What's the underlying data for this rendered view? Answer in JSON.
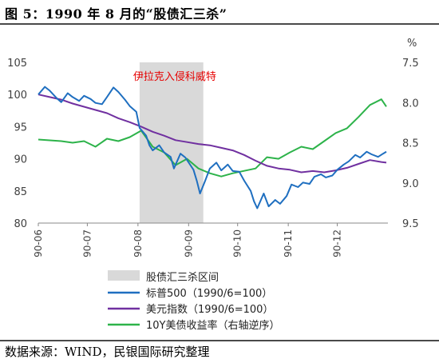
{
  "figure": {
    "title": "图 5：1990 年 8 月的“股债汇三杀”",
    "source": "数据来源：WIND，民银国际研究整理"
  },
  "colors": {
    "spx": "#1f6fc0",
    "dxy": "#7030a0",
    "yield": "#2db34a",
    "shade": "#d9d9d9",
    "annotation": "#e60000"
  },
  "chart_data": {
    "type": "line",
    "x_ticks": [
      "90-06",
      "90-07",
      "90-08",
      "90-09",
      "90-10",
      "90-11",
      "90-12"
    ],
    "x_range": [
      "1990-06-01",
      "1991-01-01"
    ],
    "y_left": {
      "range": [
        80,
        105
      ],
      "ticks": [
        80,
        85,
        90,
        95,
        100,
        105
      ]
    },
    "y_right": {
      "unit": "%",
      "range": [
        9.5,
        7.5
      ],
      "inverted": true,
      "ticks": [
        "7.5",
        "8.0",
        "8.5",
        "9.0",
        "9.5"
      ]
    },
    "shaded_region": {
      "start": "1990-08-02",
      "end": "1990-09-10",
      "label": "伊拉克入侵科威特"
    },
    "series": [
      {
        "name": "标普500（1990/6=100）",
        "axis": "left",
        "color_key": "spx",
        "points": [
          [
            "1990-06-01",
            100.0
          ],
          [
            "1990-06-05",
            101.2
          ],
          [
            "1990-06-08",
            100.6
          ],
          [
            "1990-06-12",
            99.5
          ],
          [
            "1990-06-15",
            98.8
          ],
          [
            "1990-06-19",
            100.2
          ],
          [
            "1990-06-22",
            99.6
          ],
          [
            "1990-06-26",
            99.0
          ],
          [
            "1990-06-29",
            99.8
          ],
          [
            "1990-07-03",
            99.3
          ],
          [
            "1990-07-06",
            98.7
          ],
          [
            "1990-07-10",
            98.5
          ],
          [
            "1990-07-13",
            99.6
          ],
          [
            "1990-07-17",
            101.1
          ],
          [
            "1990-07-20",
            100.4
          ],
          [
            "1990-07-24",
            99.2
          ],
          [
            "1990-07-27",
            98.2
          ],
          [
            "1990-07-31",
            97.3
          ],
          [
            "1990-08-02",
            94.8
          ],
          [
            "1990-08-06",
            93.6
          ],
          [
            "1990-08-08",
            92.1
          ],
          [
            "1990-08-10",
            91.3
          ],
          [
            "1990-08-14",
            92.1
          ],
          [
            "1990-08-17",
            91.0
          ],
          [
            "1990-08-21",
            90.3
          ],
          [
            "1990-08-23",
            88.5
          ],
          [
            "1990-08-27",
            90.8
          ],
          [
            "1990-08-30",
            90.2
          ],
          [
            "1990-09-04",
            88.3
          ],
          [
            "1990-09-06",
            86.6
          ],
          [
            "1990-09-08",
            84.6
          ],
          [
            "1990-09-11",
            86.5
          ],
          [
            "1990-09-14",
            88.5
          ],
          [
            "1990-09-18",
            89.4
          ],
          [
            "1990-09-21",
            88.2
          ],
          [
            "1990-09-25",
            89.1
          ],
          [
            "1990-09-28",
            88.1
          ],
          [
            "1990-10-02",
            88.0
          ],
          [
            "1990-10-05",
            86.6
          ],
          [
            "1990-10-09",
            85.0
          ],
          [
            "1990-10-11",
            83.4
          ],
          [
            "1990-10-13",
            82.3
          ],
          [
            "1990-10-17",
            84.6
          ],
          [
            "1990-10-20",
            82.6
          ],
          [
            "1990-10-24",
            83.6
          ],
          [
            "1990-10-27",
            83.0
          ],
          [
            "1990-10-31",
            84.2
          ],
          [
            "1990-11-03",
            86.0
          ],
          [
            "1990-11-07",
            85.6
          ],
          [
            "1990-11-10",
            86.3
          ],
          [
            "1990-11-14",
            86.1
          ],
          [
            "1990-11-17",
            87.2
          ],
          [
            "1990-11-21",
            87.6
          ],
          [
            "1990-11-24",
            87.1
          ],
          [
            "1990-11-28",
            87.4
          ],
          [
            "1990-12-01",
            88.3
          ],
          [
            "1990-12-05",
            89.1
          ],
          [
            "1990-12-08",
            89.6
          ],
          [
            "1990-12-12",
            90.6
          ],
          [
            "1990-12-15",
            90.2
          ],
          [
            "1990-12-19",
            91.1
          ],
          [
            "1990-12-22",
            90.7
          ],
          [
            "1990-12-26",
            90.3
          ],
          [
            "1990-12-29",
            90.8
          ],
          [
            "1990-12-31",
            91.1
          ]
        ]
      },
      {
        "name": "美元指数（1990/6=100）",
        "axis": "left",
        "color_key": "dxy",
        "points": [
          [
            "1990-06-01",
            100.0
          ],
          [
            "1990-06-08",
            99.6
          ],
          [
            "1990-06-15",
            99.2
          ],
          [
            "1990-06-22",
            98.6
          ],
          [
            "1990-06-29",
            98.1
          ],
          [
            "1990-07-06",
            97.6
          ],
          [
            "1990-07-13",
            97.1
          ],
          [
            "1990-07-20",
            96.3
          ],
          [
            "1990-07-27",
            95.7
          ],
          [
            "1990-08-03",
            95.0
          ],
          [
            "1990-08-10",
            94.2
          ],
          [
            "1990-08-17",
            93.6
          ],
          [
            "1990-08-24",
            92.9
          ],
          [
            "1990-08-31",
            92.6
          ],
          [
            "1990-09-07",
            92.3
          ],
          [
            "1990-09-14",
            92.1
          ],
          [
            "1990-09-21",
            91.7
          ],
          [
            "1990-09-28",
            91.3
          ],
          [
            "1990-10-05",
            90.6
          ],
          [
            "1990-10-12",
            89.7
          ],
          [
            "1990-10-19",
            88.9
          ],
          [
            "1990-10-26",
            88.5
          ],
          [
            "1990-11-02",
            88.3
          ],
          [
            "1990-11-09",
            87.9
          ],
          [
            "1990-11-16",
            88.1
          ],
          [
            "1990-11-23",
            87.9
          ],
          [
            "1990-11-30",
            88.2
          ],
          [
            "1990-12-07",
            88.6
          ],
          [
            "1990-12-14",
            89.2
          ],
          [
            "1990-12-21",
            89.8
          ],
          [
            "1990-12-28",
            89.5
          ],
          [
            "1990-12-31",
            89.4
          ]
        ]
      },
      {
        "name": "10Y美债收益率（右轴逆序）",
        "axis": "right",
        "color_key": "yield",
        "points": [
          [
            "1990-06-01",
            8.46
          ],
          [
            "1990-06-08",
            8.47
          ],
          [
            "1990-06-15",
            8.48
          ],
          [
            "1990-06-22",
            8.5
          ],
          [
            "1990-06-29",
            8.48
          ],
          [
            "1990-07-06",
            8.55
          ],
          [
            "1990-07-13",
            8.45
          ],
          [
            "1990-07-20",
            8.48
          ],
          [
            "1990-07-27",
            8.43
          ],
          [
            "1990-08-03",
            8.35
          ],
          [
            "1990-08-10",
            8.55
          ],
          [
            "1990-08-17",
            8.62
          ],
          [
            "1990-08-24",
            8.78
          ],
          [
            "1990-08-31",
            8.7
          ],
          [
            "1990-09-07",
            8.82
          ],
          [
            "1990-09-14",
            8.88
          ],
          [
            "1990-09-21",
            8.92
          ],
          [
            "1990-09-28",
            8.88
          ],
          [
            "1990-10-05",
            8.85
          ],
          [
            "1990-10-12",
            8.82
          ],
          [
            "1990-10-19",
            8.68
          ],
          [
            "1990-10-26",
            8.7
          ],
          [
            "1990-11-02",
            8.62
          ],
          [
            "1990-11-09",
            8.55
          ],
          [
            "1990-11-16",
            8.58
          ],
          [
            "1990-11-23",
            8.48
          ],
          [
            "1990-11-30",
            8.38
          ],
          [
            "1990-12-07",
            8.32
          ],
          [
            "1990-12-14",
            8.18
          ],
          [
            "1990-12-21",
            8.03
          ],
          [
            "1990-12-28",
            7.96
          ],
          [
            "1990-12-31",
            8.05
          ]
        ]
      }
    ],
    "legend": [
      {
        "label": "股债汇三杀区间",
        "marker": "box",
        "color_key": "shade"
      },
      {
        "label": "标普500（1990/6=100）",
        "marker": "line",
        "color_key": "spx"
      },
      {
        "label": "美元指数（1990/6=100）",
        "marker": "line",
        "color_key": "dxy"
      },
      {
        "label": "10Y美债收益率（右轴逆序）",
        "marker": "line",
        "color_key": "yield"
      }
    ],
    "legend_position": "bottom"
  }
}
